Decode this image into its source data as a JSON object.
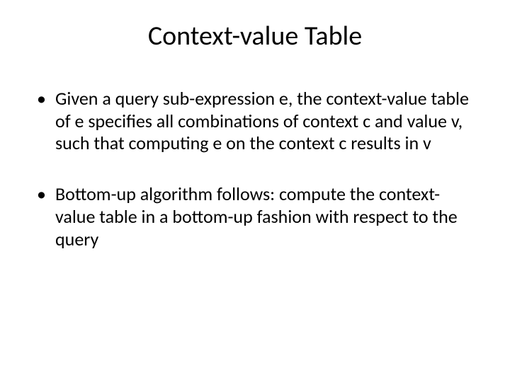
{
  "slide": {
    "title": "Context-value Table",
    "title_fontsize": 38,
    "title_color": "#000000",
    "bullets": [
      {
        "text": "Given a query sub-expression e, the context-value table of e specifies all combinations of context c and value v, such that computing e on the context c results in v"
      },
      {
        "text": "Bottom-up algorithm follows: compute the context-value table in a bottom-up fashion with respect to the query"
      }
    ],
    "body_fontsize": 26,
    "body_color": "#000000",
    "background_color": "#ffffff",
    "bullet_marker": "•"
  }
}
